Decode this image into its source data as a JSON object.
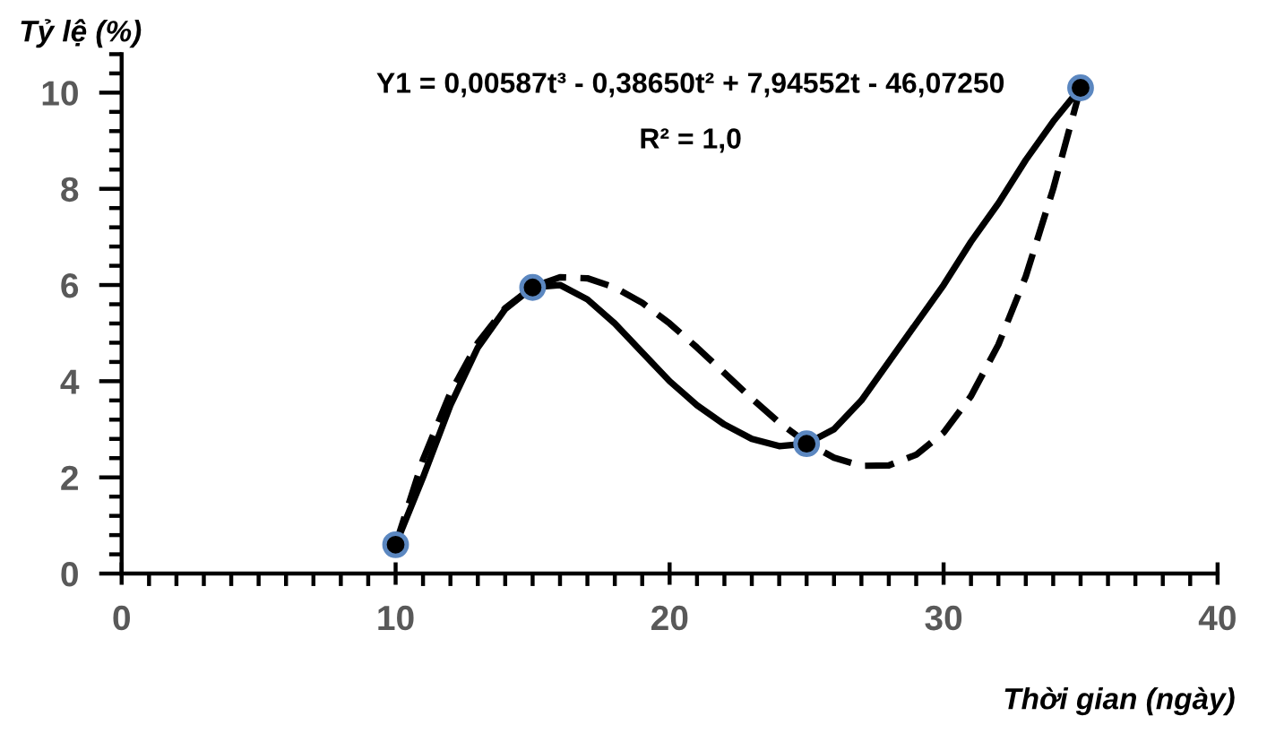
{
  "chart_data": {
    "type": "line",
    "xlabel": "Thời gian (ngày)",
    "ylabel": "Tỷ lệ (%)",
    "annotations": [
      "Y1 = 0,00587t³ - 0,38650t² + 7,94552t - 46,07250",
      "R² = 1,0"
    ],
    "xlim": [
      0,
      40
    ],
    "ylim": [
      0,
      10.8
    ],
    "xticks": [
      0,
      {
        "value": 1,
        "label": null
      },
      {
        "value": 2,
        "label": null
      },
      {
        "value": 3,
        "label": null
      },
      {
        "value": 4,
        "label": null
      },
      {
        "value": 5,
        "label": null
      },
      {
        "value": 6,
        "label": null
      },
      {
        "value": 7,
        "label": null
      },
      {
        "value": 8,
        "label": null
      },
      {
        "value": 9,
        "label": null
      },
      10,
      {
        "value": 11,
        "label": null
      },
      {
        "value": 12,
        "label": null
      },
      {
        "value": 13,
        "label": null
      },
      {
        "value": 14,
        "label": null
      },
      {
        "value": 15,
        "label": null
      },
      {
        "value": 16,
        "label": null
      },
      {
        "value": 17,
        "label": null
      },
      {
        "value": 18,
        "label": null
      },
      {
        "value": 19,
        "label": null
      },
      20,
      {
        "value": 21,
        "label": null
      },
      {
        "value": 22,
        "label": null
      },
      {
        "value": 23,
        "label": null
      },
      {
        "value": 24,
        "label": null
      },
      {
        "value": 25,
        "label": null
      },
      {
        "value": 26,
        "label": null
      },
      {
        "value": 27,
        "label": null
      },
      {
        "value": 28,
        "label": null
      },
      {
        "value": 29,
        "label": null
      },
      30,
      {
        "value": 31,
        "label": null
      },
      {
        "value": 32,
        "label": null
      },
      {
        "value": 33,
        "label": null
      },
      {
        "value": 34,
        "label": null
      },
      {
        "value": 35,
        "label": null
      },
      {
        "value": 36,
        "label": null
      },
      {
        "value": 37,
        "label": null
      },
      {
        "value": 38,
        "label": null
      },
      {
        "value": 39,
        "label": null
      },
      40
    ],
    "yticks": [
      0,
      {
        "value": 0.4,
        "label": null
      },
      {
        "value": 0.8,
        "label": null
      },
      {
        "value": 1.2,
        "label": null
      },
      {
        "value": 1.6,
        "label": null
      },
      2,
      {
        "value": 2.4,
        "label": null
      },
      {
        "value": 2.8,
        "label": null
      },
      {
        "value": 3.2,
        "label": null
      },
      {
        "value": 3.6,
        "label": null
      },
      4,
      {
        "value": 4.4,
        "label": null
      },
      {
        "value": 4.8,
        "label": null
      },
      {
        "value": 5.2,
        "label": null
      },
      {
        "value": 5.6,
        "label": null
      },
      6,
      {
        "value": 6.4,
        "label": null
      },
      {
        "value": 6.8,
        "label": null
      },
      {
        "value": 7.2,
        "label": null
      },
      {
        "value": 7.6,
        "label": null
      },
      8,
      {
        "value": 8.4,
        "label": null
      },
      {
        "value": 8.8,
        "label": null
      },
      {
        "value": 9.2,
        "label": null
      },
      {
        "value": 9.6,
        "label": null
      },
      10,
      {
        "value": 10.4,
        "label": null
      },
      {
        "value": 10.8,
        "label": null
      }
    ],
    "grid": false,
    "legend": false,
    "series": [
      {
        "color": "#000000",
        "line_style": "solid",
        "marker": "none",
        "x": [
          10,
          11,
          12,
          13,
          14,
          15,
          16,
          17,
          18,
          19,
          20,
          21,
          22,
          23,
          24,
          25,
          26,
          27,
          28,
          29,
          30,
          31,
          32,
          33,
          34,
          35
        ],
        "values": [
          0.6,
          2.0,
          3.5,
          4.7,
          5.5,
          5.95,
          6.0,
          5.7,
          5.2,
          4.6,
          4.0,
          3.5,
          3.1,
          2.8,
          2.65,
          2.7,
          3.0,
          3.6,
          4.4,
          5.2,
          6.0,
          6.9,
          7.7,
          8.6,
          9.4,
          10.1
        ]
      },
      {
        "color": "#000000",
        "line_style": "dashed",
        "marker": "none",
        "x": [
          10,
          11,
          12,
          13,
          14,
          15,
          16,
          17,
          18,
          19,
          20,
          21,
          22,
          23,
          24,
          25,
          26,
          27,
          28,
          29,
          30,
          31,
          32,
          33,
          34,
          35
        ],
        "values": [
          0.6,
          2.37,
          3.76,
          4.8,
          5.52,
          5.96,
          6.16,
          6.14,
          5.95,
          5.63,
          5.2,
          4.7,
          4.17,
          3.64,
          3.14,
          2.72,
          2.41,
          2.24,
          2.25,
          2.47,
          2.93,
          3.69,
          4.76,
          6.18,
          8.0,
          10.1
        ]
      },
      {
        "type": "scatter",
        "color": "#000000",
        "marker": "circle",
        "x": [
          10,
          15,
          25,
          35
        ],
        "values": [
          0.6,
          5.95,
          2.7,
          10.1
        ]
      }
    ]
  }
}
